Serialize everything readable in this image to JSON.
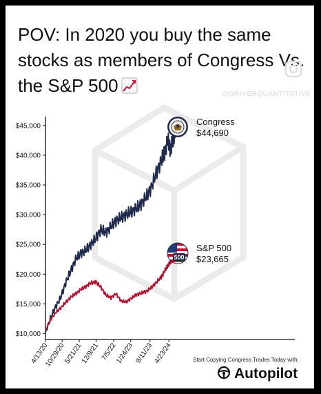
{
  "headline": "POV: In 2020 you buy the same stocks as members of Congress Vs. the S&P 500",
  "watermark": "@DRIVERQUANTITATIVE",
  "cta": "Start Copying Congress Trades Today with:",
  "brand": {
    "name": "Autopilot",
    "icon": "steering-wheel-icon"
  },
  "headline_icon": "chart-increasing-icon",
  "chart_data": {
    "type": "line",
    "y_tick_labels": [
      "$10,000",
      "$15,000",
      "$20,000",
      "$25,000",
      "$30,000",
      "$35,000",
      "$40,000",
      "$45,000"
    ],
    "y_ticks": [
      10000,
      15000,
      20000,
      25000,
      30000,
      35000,
      40000,
      45000
    ],
    "ylim": [
      9000,
      46500
    ],
    "x_tick_labels": [
      "4/13/20",
      "10/29/20",
      "5/21/21",
      "12/9/21",
      "7/5/22",
      "1/24/23",
      "9/11/23",
      "4/23/24"
    ],
    "x_ticks": [
      0,
      199,
      403,
      605,
      813,
      1016,
      1246,
      1471
    ],
    "xlim": [
      0,
      1560
    ],
    "series": [
      {
        "name": "Congress",
        "value_label": "$44,690",
        "color": "#1f2a4d",
        "icon": "congress-seal-icon",
        "x": [
          0,
          60,
          120,
          180,
          240,
          300,
          360,
          420,
          480,
          540,
          600,
          660,
          720,
          780,
          840,
          900,
          960,
          1020,
          1080,
          1140,
          1200,
          1260,
          1320,
          1380,
          1420,
          1460,
          1490,
          1520,
          1540,
          1560
        ],
        "y": [
          10200,
          12600,
          14500,
          16000,
          18500,
          20500,
          22500,
          23500,
          24000,
          25000,
          26000,
          27500,
          27000,
          28000,
          29000,
          29500,
          30000,
          30500,
          31000,
          31800,
          33000,
          34500,
          37000,
          39000,
          40500,
          42500,
          41000,
          42500,
          44000,
          44690
        ]
      },
      {
        "name": "S&P 500",
        "value_label": "$23,665",
        "color": "#b3122e",
        "icon": "us-flag-500-icon",
        "x": [
          0,
          60,
          120,
          180,
          240,
          300,
          360,
          420,
          480,
          540,
          600,
          660,
          720,
          780,
          840,
          900,
          960,
          1020,
          1080,
          1140,
          1200,
          1260,
          1320,
          1380,
          1420,
          1460,
          1490,
          1520,
          1540,
          1560
        ],
        "y": [
          10500,
          12300,
          13500,
          14300,
          15200,
          16100,
          16700,
          17400,
          17900,
          18500,
          18700,
          17800,
          16500,
          16000,
          16700,
          15500,
          15300,
          15900,
          16500,
          16800,
          17100,
          17700,
          18600,
          19500,
          20500,
          21500,
          22000,
          22600,
          23000,
          23665
        ]
      }
    ],
    "grid": false,
    "legend": "inline labels at line ends"
  }
}
